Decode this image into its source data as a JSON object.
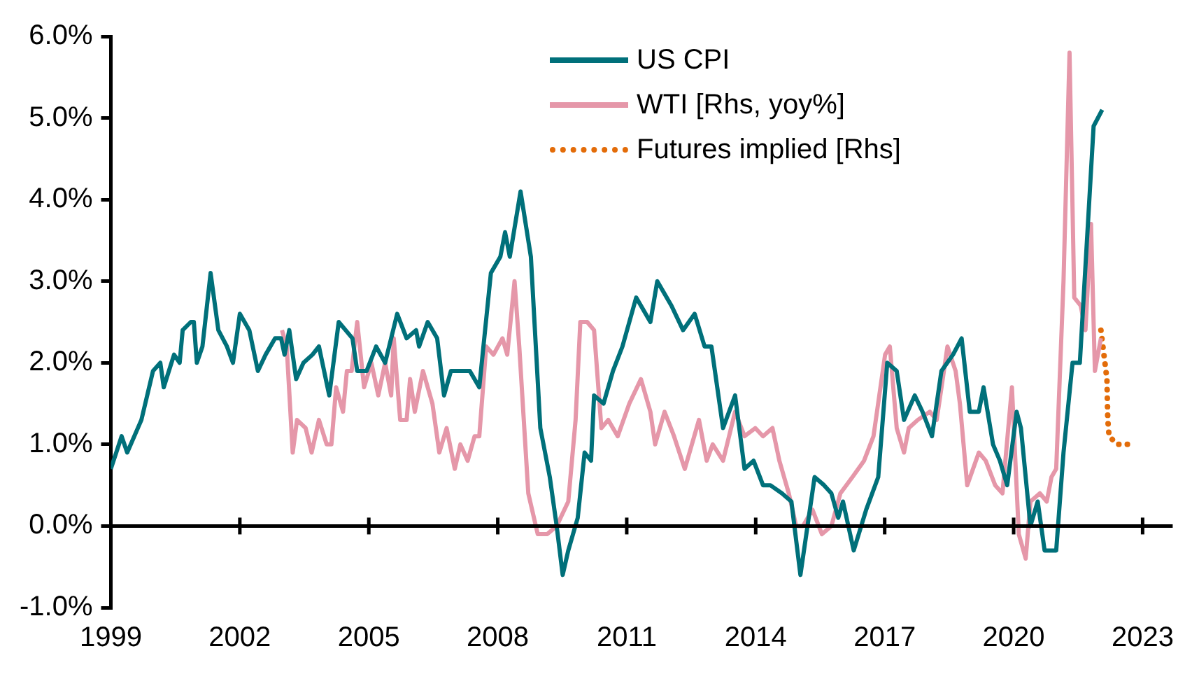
{
  "chart_data": {
    "type": "line",
    "legend": "top",
    "xlim": [
      1999,
      2023.7
    ],
    "xticks": [
      1999,
      2002,
      2005,
      2008,
      2011,
      2014,
      2017,
      2020,
      2023
    ],
    "ylim": [
      -1,
      6
    ],
    "yticks": [
      {
        "value": -1,
        "label": "-1.0%"
      },
      {
        "value": 0,
        "label": "0.0%"
      },
      {
        "value": 1,
        "label": "1.0%"
      },
      {
        "value": 2,
        "label": "2.0%"
      },
      {
        "value": 3,
        "label": "3.0%"
      },
      {
        "value": 4,
        "label": "4.0%"
      },
      {
        "value": 5,
        "label": "5.0%"
      },
      {
        "value": 6,
        "label": "6.0%"
      }
    ],
    "series": [
      {
        "name": "US CPI",
        "color": "#00707a",
        "line_style": "solid",
        "x": [
          1999.0,
          1999.25,
          1999.38,
          1999.71,
          1999.98,
          2000.15,
          2000.23,
          2000.47,
          2000.6,
          2000.67,
          2000.86,
          2000.93,
          2001.0,
          2001.13,
          2001.32,
          2001.5,
          2001.7,
          2001.84,
          2002.0,
          2002.22,
          2002.42,
          2002.6,
          2002.82,
          2002.96,
          2003.04,
          2003.15,
          2003.31,
          2003.48,
          2003.69,
          2003.84,
          2004.08,
          2004.3,
          2004.46,
          2004.62,
          2004.73,
          2004.95,
          2005.17,
          2005.38,
          2005.52,
          2005.66,
          2005.88,
          2006.1,
          2006.17,
          2006.37,
          2006.59,
          2006.75,
          2006.91,
          2007.13,
          2007.35,
          2007.57,
          2007.84,
          2008.06,
          2008.17,
          2008.28,
          2008.53,
          2008.77,
          2008.99,
          2009.21,
          2009.37,
          2009.51,
          2009.64,
          2009.86,
          2010.02,
          2010.17,
          2010.24,
          2010.46,
          2010.68,
          2010.9,
          2011.22,
          2011.55,
          2011.71,
          2012.04,
          2012.31,
          2012.58,
          2012.81,
          2012.97,
          2013.24,
          2013.52,
          2013.74,
          2013.95,
          2014.17,
          2014.34,
          2014.61,
          2014.83,
          2015.04,
          2015.37,
          2015.59,
          2015.76,
          2015.92,
          2016.03,
          2016.28,
          2016.57,
          2016.85,
          2017.06,
          2017.28,
          2017.45,
          2017.7,
          2017.88,
          2018.1,
          2018.32,
          2018.59,
          2018.79,
          2018.98,
          2019.19,
          2019.3,
          2019.52,
          2019.68,
          2019.85,
          2020.07,
          2020.17,
          2020.39,
          2020.56,
          2020.72,
          2020.99,
          2021.16,
          2021.37,
          2021.54,
          2021.86,
          2022.06
        ],
        "values": [
          0.7,
          1.1,
          0.9,
          1.3,
          1.9,
          2.0,
          1.7,
          2.1,
          2.0,
          2.4,
          2.5,
          2.5,
          2.0,
          2.2,
          3.1,
          2.4,
          2.2,
          2.0,
          2.6,
          2.4,
          1.9,
          2.1,
          2.3,
          2.3,
          2.1,
          2.4,
          1.8,
          2.0,
          2.1,
          2.2,
          1.6,
          2.5,
          2.4,
          2.3,
          1.9,
          1.9,
          2.2,
          2.0,
          2.3,
          2.6,
          2.3,
          2.4,
          2.2,
          2.5,
          2.3,
          1.6,
          1.9,
          1.9,
          1.9,
          1.7,
          3.1,
          3.3,
          3.6,
          3.3,
          4.1,
          3.3,
          1.2,
          0.6,
          0.0,
          -0.6,
          -0.3,
          0.1,
          0.9,
          0.8,
          1.6,
          1.5,
          1.9,
          2.2,
          2.8,
          2.5,
          3.0,
          2.7,
          2.4,
          2.6,
          2.2,
          2.2,
          1.2,
          1.6,
          0.7,
          0.8,
          0.5,
          0.5,
          0.4,
          0.3,
          -0.6,
          0.6,
          0.5,
          0.4,
          0.1,
          0.3,
          -0.3,
          0.2,
          0.6,
          2.0,
          1.9,
          1.3,
          1.6,
          1.4,
          1.1,
          1.9,
          2.1,
          2.3,
          1.4,
          1.4,
          1.7,
          1.0,
          0.8,
          0.5,
          1.4,
          1.2,
          0.0,
          0.3,
          -0.3,
          -0.3,
          0.9,
          2.0,
          2.0,
          4.9,
          5.1
        ]
      },
      {
        "name": "WTI [Rhs, yoy%]",
        "color": "#e597a9",
        "line_style": "solid",
        "x": [
          2002.98,
          2003.09,
          2003.23,
          2003.33,
          2003.53,
          2003.67,
          2003.84,
          2004.02,
          2004.13,
          2004.24,
          2004.4,
          2004.49,
          2004.6,
          2004.73,
          2004.89,
          2005.06,
          2005.22,
          2005.38,
          2005.52,
          2005.58,
          2005.73,
          2005.88,
          2005.96,
          2006.07,
          2006.26,
          2006.48,
          2006.64,
          2006.81,
          2007.0,
          2007.13,
          2007.3,
          2007.46,
          2007.57,
          2007.73,
          2007.9,
          2008.11,
          2008.22,
          2008.39,
          2008.5,
          2008.71,
          2008.93,
          2009.15,
          2009.37,
          2009.64,
          2009.81,
          2009.92,
          2010.08,
          2010.24,
          2010.41,
          2010.57,
          2010.79,
          2011.06,
          2011.33,
          2011.55,
          2011.66,
          2011.88,
          2012.1,
          2012.35,
          2012.68,
          2012.86,
          2013.0,
          2013.24,
          2013.52,
          2013.74,
          2013.99,
          2014.17,
          2014.39,
          2014.55,
          2014.77,
          2014.94,
          2015.1,
          2015.32,
          2015.54,
          2015.76,
          2015.97,
          2016.25,
          2016.52,
          2016.74,
          2017.01,
          2017.12,
          2017.28,
          2017.45,
          2017.56,
          2017.77,
          2018.05,
          2018.21,
          2018.35,
          2018.46,
          2018.65,
          2018.75,
          2018.92,
          2019.19,
          2019.35,
          2019.57,
          2019.74,
          2019.96,
          2020.12,
          2020.28,
          2020.39,
          2020.61,
          2020.77,
          2020.88,
          2020.99,
          2021.16,
          2021.3,
          2021.41,
          2021.56,
          2021.67,
          2021.8,
          2021.89,
          2022.03
        ],
        "values": [
          2.4,
          2.2,
          0.9,
          1.3,
          1.2,
          0.9,
          1.3,
          1.0,
          1.0,
          1.7,
          1.4,
          1.9,
          1.9,
          2.5,
          1.7,
          2.0,
          1.6,
          2.0,
          1.6,
          2.3,
          1.3,
          1.3,
          1.8,
          1.4,
          1.9,
          1.5,
          0.9,
          1.2,
          0.7,
          1.0,
          0.8,
          1.1,
          1.1,
          2.2,
          2.1,
          2.3,
          2.1,
          3.0,
          2.2,
          0.4,
          -0.1,
          -0.1,
          0.0,
          0.3,
          1.3,
          2.5,
          2.5,
          2.4,
          1.2,
          1.3,
          1.1,
          1.5,
          1.8,
          1.4,
          1.0,
          1.4,
          1.1,
          0.7,
          1.3,
          0.8,
          1.0,
          0.8,
          1.4,
          1.1,
          1.2,
          1.1,
          1.2,
          0.8,
          0.4,
          0.0,
          0.0,
          0.2,
          -0.1,
          0.0,
          0.4,
          0.6,
          0.8,
          1.1,
          2.1,
          2.2,
          1.2,
          0.9,
          1.2,
          1.3,
          1.4,
          1.3,
          1.8,
          2.2,
          1.9,
          1.5,
          0.5,
          0.9,
          0.8,
          0.5,
          0.4,
          1.7,
          -0.1,
          -0.4,
          0.3,
          0.4,
          0.3,
          0.6,
          0.7,
          3.0,
          5.8,
          2.8,
          2.7,
          2.4,
          3.7,
          1.9,
          2.3
        ]
      },
      {
        "name": "Futures implied [Rhs]",
        "color": "#e36c09",
        "line_style": "dotted",
        "x": [
          2022.03,
          2022.17,
          2022.19,
          2022.22,
          2022.41,
          2022.79
        ],
        "values": [
          2.4,
          1.8,
          1.3,
          1.1,
          1.0,
          1.0
        ]
      }
    ]
  }
}
